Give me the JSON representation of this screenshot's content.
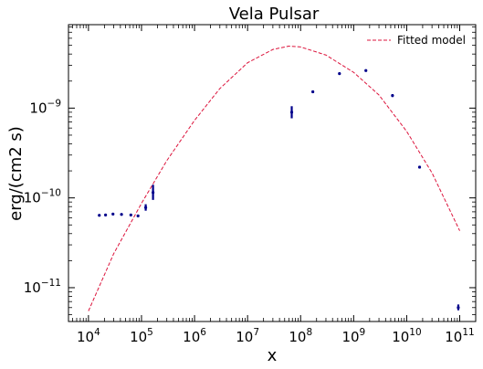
{
  "chart_data": {
    "type": "scatter",
    "title": "Vela Pulsar",
    "xlabel": "x",
    "ylabel": "erg/(cm2 s)",
    "xscale": "log",
    "yscale": "log",
    "xlim": [
      4200.0,
      200000000000.0
    ],
    "ylim": [
      4.2e-12,
      8.5e-09
    ],
    "x_ticks": [
      {
        "value": 10000.0,
        "base": "10",
        "exp": "4"
      },
      {
        "value": 100000.0,
        "base": "10",
        "exp": "5"
      },
      {
        "value": 1000000.0,
        "base": "10",
        "exp": "6"
      },
      {
        "value": 10000000.0,
        "base": "10",
        "exp": "7"
      },
      {
        "value": 100000000.0,
        "base": "10",
        "exp": "8"
      },
      {
        "value": 1000000000.0,
        "base": "10",
        "exp": "9"
      },
      {
        "value": 10000000000.0,
        "base": "10",
        "exp": "10"
      },
      {
        "value": 100000000000.0,
        "base": "10",
        "exp": "11"
      }
    ],
    "y_ticks": [
      {
        "value": 1e-11,
        "base": "10",
        "exp": "−11"
      },
      {
        "value": 1e-10,
        "base": "10",
        "exp": "−10"
      },
      {
        "value": 1e-09,
        "base": "10",
        "exp": "−9"
      }
    ],
    "grid": false,
    "legend": {
      "position": "top-right",
      "entries": [
        "Fitted model"
      ]
    },
    "series": [
      {
        "type": "errorbar-points",
        "color": "#00008b",
        "points": [
          {
            "x": 16000.0,
            "y": 6.4e-11,
            "ylo": 6.25e-11,
            "yhi": 6.55e-11
          },
          {
            "x": 21000.0,
            "y": 6.45e-11,
            "ylo": 6.3e-11,
            "yhi": 6.6e-11
          },
          {
            "x": 29000.0,
            "y": 6.6e-11,
            "ylo": 6.45e-11,
            "yhi": 6.75e-11
          },
          {
            "x": 42000.0,
            "y": 6.55e-11,
            "ylo": 6.4e-11,
            "yhi": 6.7e-11
          },
          {
            "x": 63000.0,
            "y": 6.45e-11,
            "ylo": 6.3e-11,
            "yhi": 6.6e-11
          },
          {
            "x": 86000.0,
            "y": 6.3e-11,
            "ylo": 6.15e-11,
            "yhi": 6.45e-11
          },
          {
            "x": 120000.0,
            "y": 7.8e-11,
            "ylo": 7.2e-11,
            "yhi": 8.5e-11
          },
          {
            "x": 165000.0,
            "y": 1.15e-10,
            "ylo": 9.5e-11,
            "yhi": 1.4e-10
          },
          {
            "x": 68000000.0,
            "y": 9e-10,
            "ylo": 7.7e-10,
            "yhi": 1.05e-09
          },
          {
            "x": 170000000.0,
            "y": 1.52e-09,
            "ylo": 1.47e-09,
            "yhi": 1.57e-09
          },
          {
            "x": 540000000.0,
            "y": 2.42e-09,
            "ylo": 2.35e-09,
            "yhi": 2.5e-09
          },
          {
            "x": 1700000000.0,
            "y": 2.62e-09,
            "ylo": 2.54e-09,
            "yhi": 2.7e-09
          },
          {
            "x": 5400000000.0,
            "y": 1.38e-09,
            "ylo": 1.33e-09,
            "yhi": 1.43e-09
          },
          {
            "x": 17500000000.0,
            "y": 2.2e-10,
            "ylo": 2.13e-10,
            "yhi": 2.27e-10
          },
          {
            "x": 94000000000.0,
            "y": 6e-12,
            "ylo": 5.6e-12,
            "yhi": 6.5e-12
          }
        ]
      },
      {
        "name": "Fitted model",
        "type": "line",
        "color": "#dc143c",
        "dash": "dashed",
        "x": [
          10000.0,
          30000.0,
          100000.0,
          300000.0,
          1000000.0,
          3000000.0,
          10000000.0,
          30000000.0,
          60000000.0,
          100000000.0,
          300000000.0,
          1000000000.0,
          3000000000.0,
          10000000000.0,
          30000000000.0,
          100000000000.0
        ],
        "y": [
          5.5e-12,
          2.4e-11,
          8.7e-11,
          2.6e-10,
          7.3e-10,
          1.65e-09,
          3.2e-09,
          4.5e-09,
          4.9e-09,
          4.8e-09,
          3.9e-09,
          2.5e-09,
          1.4e-09,
          5.5e-10,
          1.9e-10,
          4.3e-11
        ]
      }
    ]
  }
}
